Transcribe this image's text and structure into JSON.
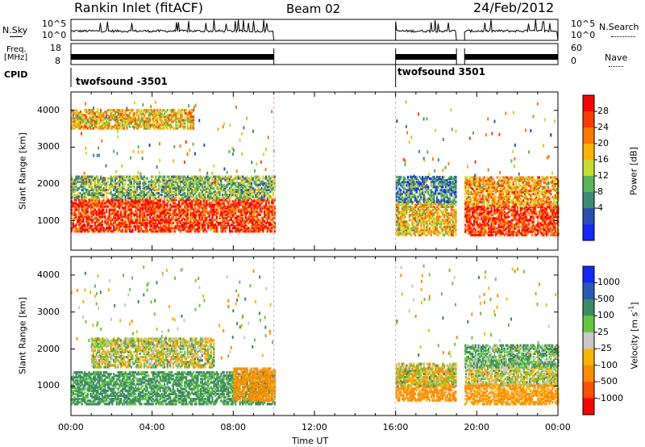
{
  "header": {
    "station": "Rankin Inlet (fitACF)",
    "beam": "Beam 02",
    "date": "24/Feb/2012"
  },
  "strips": {
    "nsky_label": "N.Sky",
    "nsky_ticks": [
      "10^5",
      "10^0"
    ],
    "nsearch_label": "N.Search",
    "nsearch_ticks": [
      "10^5",
      "10^0"
    ],
    "freq_label_line1": "Freq.",
    "freq_label_line2": "[MHz]",
    "freq_ticks": [
      "18",
      "8"
    ],
    "nave_label": "Nave",
    "nave_ticks": [
      "60",
      "0"
    ],
    "cpid_label": "CPID",
    "cpid_segments": [
      {
        "label": "twofsound -3501",
        "start": "00:00",
        "end": "10:00"
      },
      {
        "label": "twofsound 3501",
        "start": "16:00",
        "end": "24:00"
      }
    ]
  },
  "panels": {
    "ylabel": "Slant Range [km]",
    "yticks": [
      "4000",
      "3000",
      "2000",
      "1000"
    ],
    "xticks": [
      "00:00",
      "04:00",
      "08:00",
      "12:00",
      "16:00",
      "20:00",
      "00:00"
    ],
    "xlabel": "Time UT"
  },
  "colorbars": {
    "power": {
      "label": "Power [dB]",
      "ticks": [
        "28",
        "24",
        "20",
        "16",
        "12",
        "8",
        "4"
      ],
      "colors": [
        "#ff0000",
        "#ff3c00",
        "#ff7800",
        "#ffb400",
        "#c8dc32",
        "#5ab45a",
        "#3c8c78",
        "#2850b4",
        "#1428ff"
      ]
    },
    "velocity": {
      "label_main": "Velocity [m s",
      "label_sup": "-1",
      "label_end": "]",
      "ticks": [
        "1000",
        "500",
        "100",
        "25",
        "-25",
        "-100",
        "-500",
        "-1000"
      ],
      "colors": [
        "#1428ff",
        "#285ab4",
        "#3c8c64",
        "#64c83c",
        "#c8c8c8",
        "#ffb400",
        "#ff8c00",
        "#ff5000",
        "#ff0000"
      ]
    }
  },
  "chart_data": {
    "type": "heatmap",
    "title": "Rankin Inlet (fitACF)",
    "x_unit": "hours UT",
    "xlim": [
      0,
      24
    ],
    "ylim": [
      200,
      4500
    ],
    "data_intervals": [
      [
        0,
        10
      ],
      [
        16,
        19
      ],
      [
        19.4,
        24
      ]
    ],
    "power_range_db": [
      0,
      30
    ],
    "velocity_range": [
      -1000,
      1000
    ],
    "power_bands": [
      {
        "start_h": 0,
        "end_h": 10,
        "range_km": [
          700,
          1600
        ],
        "db": 26
      },
      {
        "start_h": 0,
        "end_h": 10,
        "range_km": [
          1600,
          2200
        ],
        "db": 12
      },
      {
        "start_h": 0,
        "end_h": 6,
        "range_km": [
          3500,
          4000
        ],
        "db": 18
      },
      {
        "start_h": 16,
        "end_h": 19,
        "range_km": [
          600,
          1500
        ],
        "db": 18
      },
      {
        "start_h": 16,
        "end_h": 19,
        "range_km": [
          1500,
          2200
        ],
        "db": 8
      },
      {
        "start_h": 19.4,
        "end_h": 24,
        "range_km": [
          600,
          1400
        ],
        "db": 26
      },
      {
        "start_h": 19.4,
        "end_h": 24,
        "range_km": [
          1400,
          2200
        ],
        "db": 20
      }
    ],
    "velocity_bands": [
      {
        "start_h": 0,
        "end_h": 10,
        "range_km": [
          500,
          1400
        ],
        "v": 150
      },
      {
        "start_h": 1,
        "end_h": 7,
        "range_km": [
          1500,
          2300
        ],
        "v": 0
      },
      {
        "start_h": 8,
        "end_h": 10,
        "range_km": [
          600,
          1500
        ],
        "v": -200
      },
      {
        "start_h": 16,
        "end_h": 19,
        "range_km": [
          600,
          1500
        ],
        "v": -200
      },
      {
        "start_h": 16,
        "end_h": 24,
        "range_km": [
          1000,
          1600
        ],
        "v": 0
      },
      {
        "start_h": 19.4,
        "end_h": 24,
        "range_km": [
          500,
          1000
        ],
        "v": -150
      },
      {
        "start_h": 19.4,
        "end_h": 24,
        "range_km": [
          1500,
          2100
        ],
        "v": 100
      }
    ]
  }
}
